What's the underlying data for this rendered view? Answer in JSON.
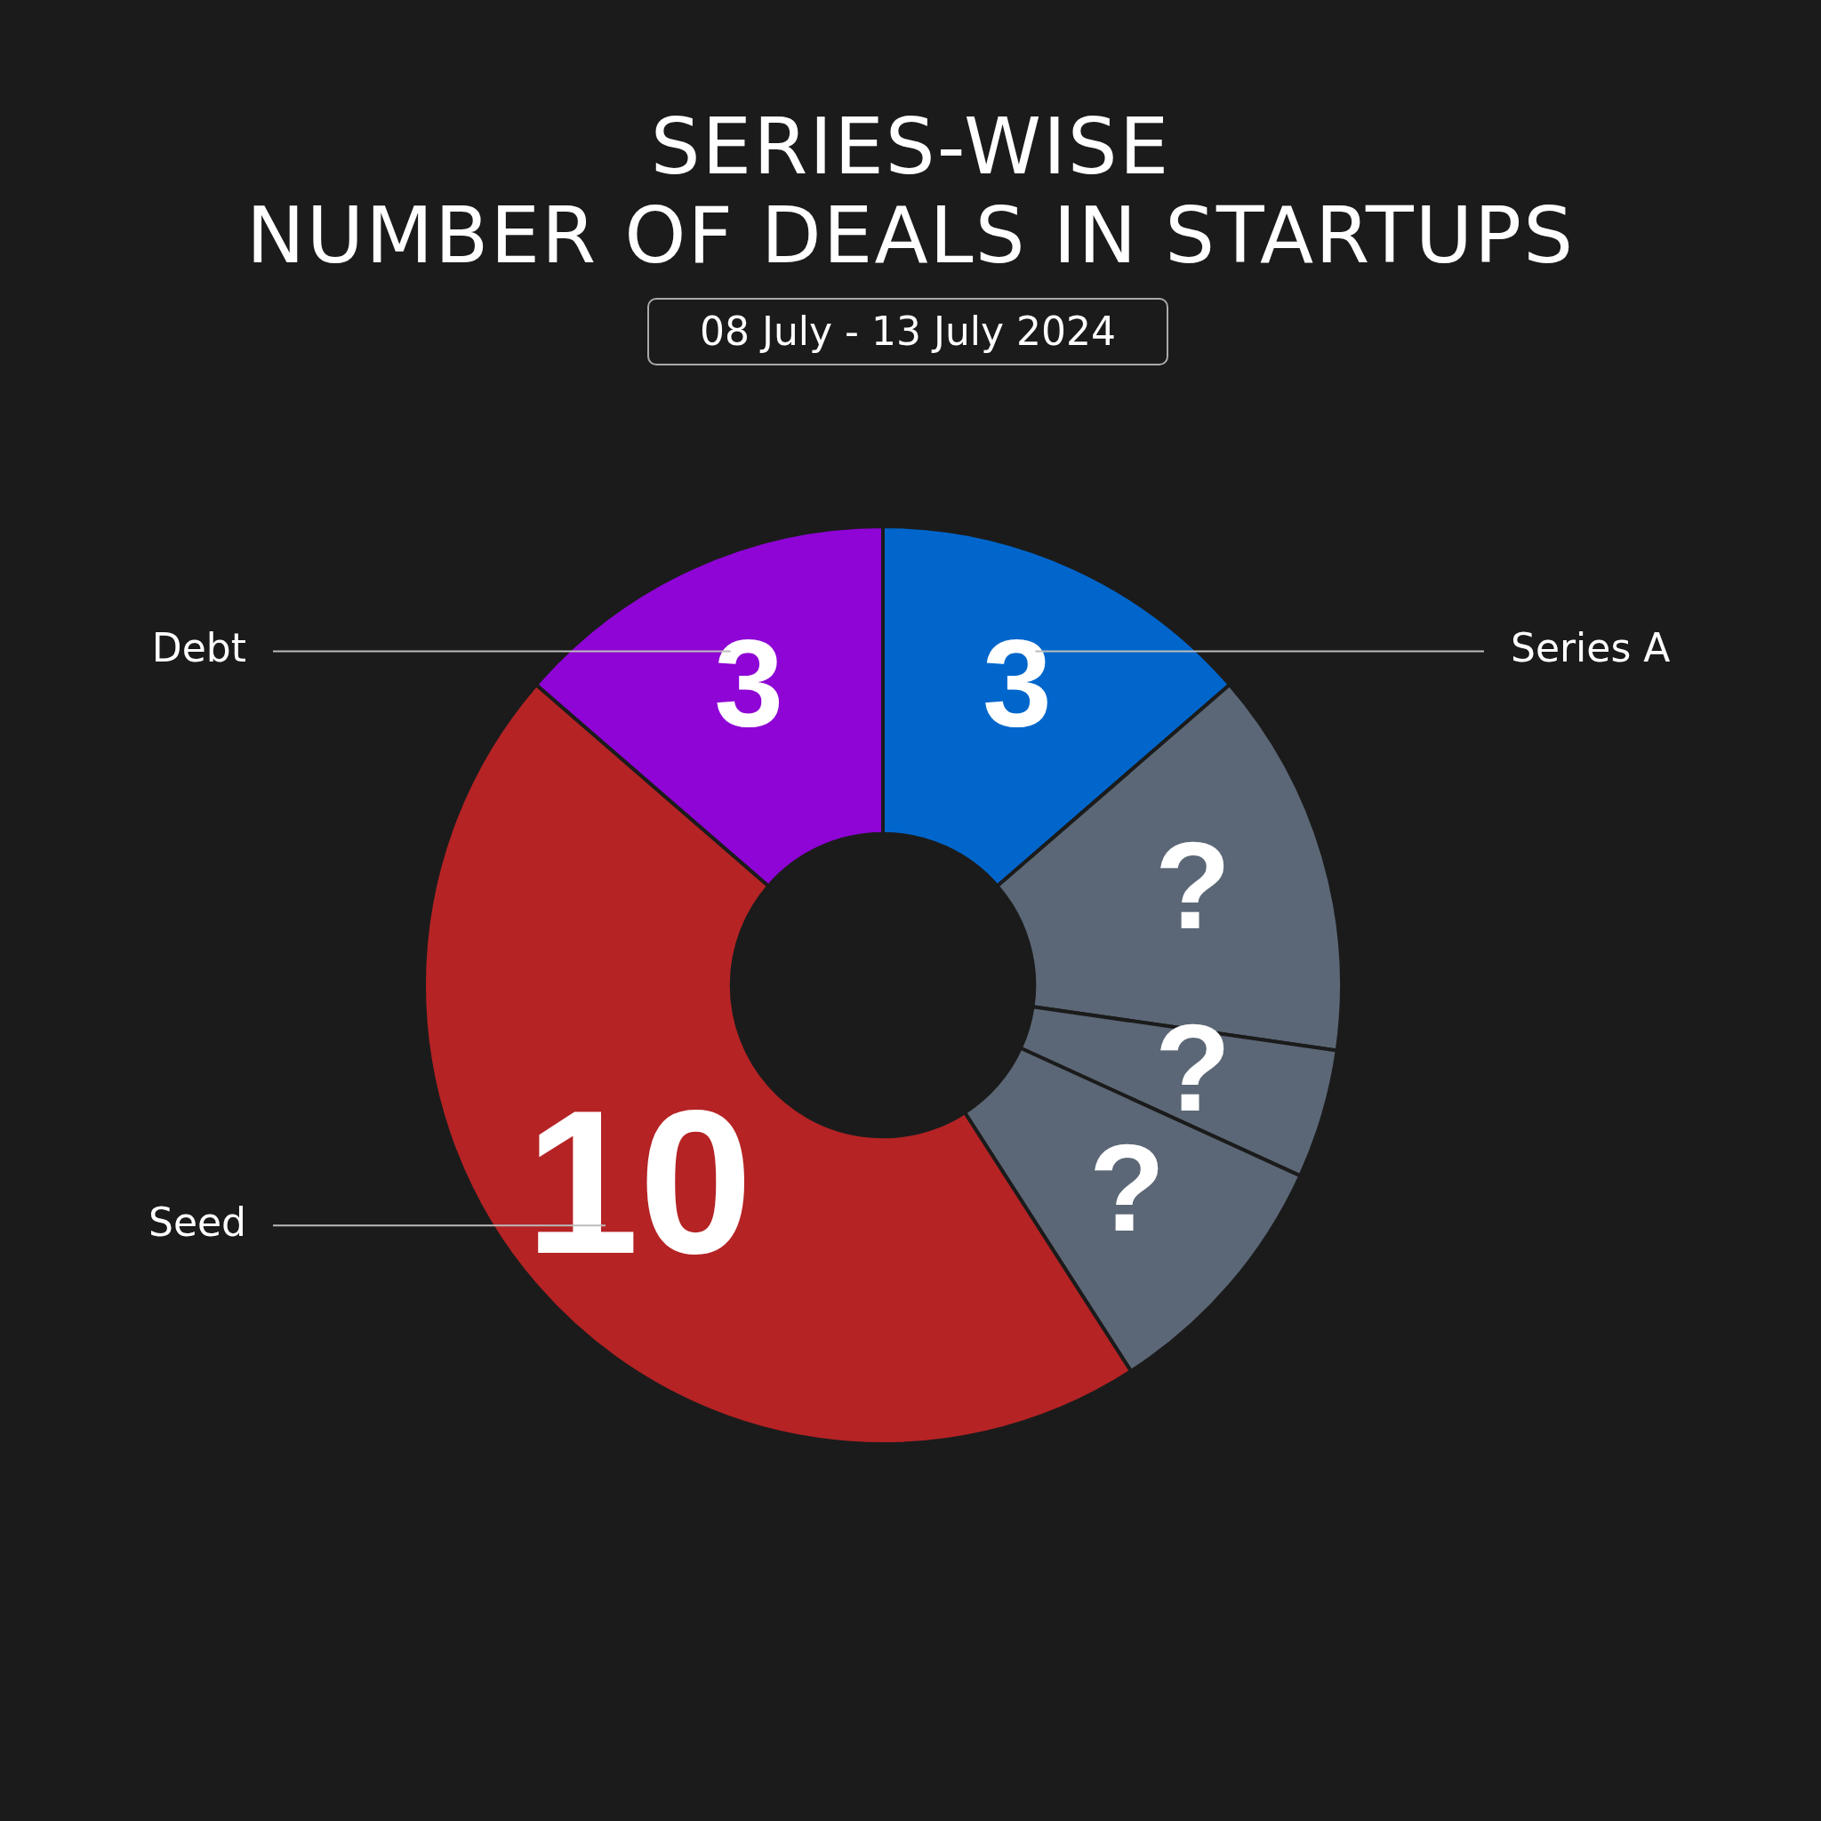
{
  "chart_data": {
    "type": "donut",
    "title": "SERIES-WISE\nNUMBER OF DEALS IN STARTUPS",
    "subtitle": "08 July - 13 July 2024",
    "categories": [
      "Series A",
      null,
      null,
      null,
      "Seed",
      "Debt"
    ],
    "values": [
      3,
      3,
      1,
      2,
      10,
      3
    ],
    "colors": [
      "#0066cc",
      "#5b6776",
      "#5b6776",
      "#5b6776",
      "#b52325",
      "#8e05d5"
    ],
    "value_labels": [
      "3",
      "?",
      "?",
      "?",
      "10",
      "3"
    ],
    "legend": false
  }
}
